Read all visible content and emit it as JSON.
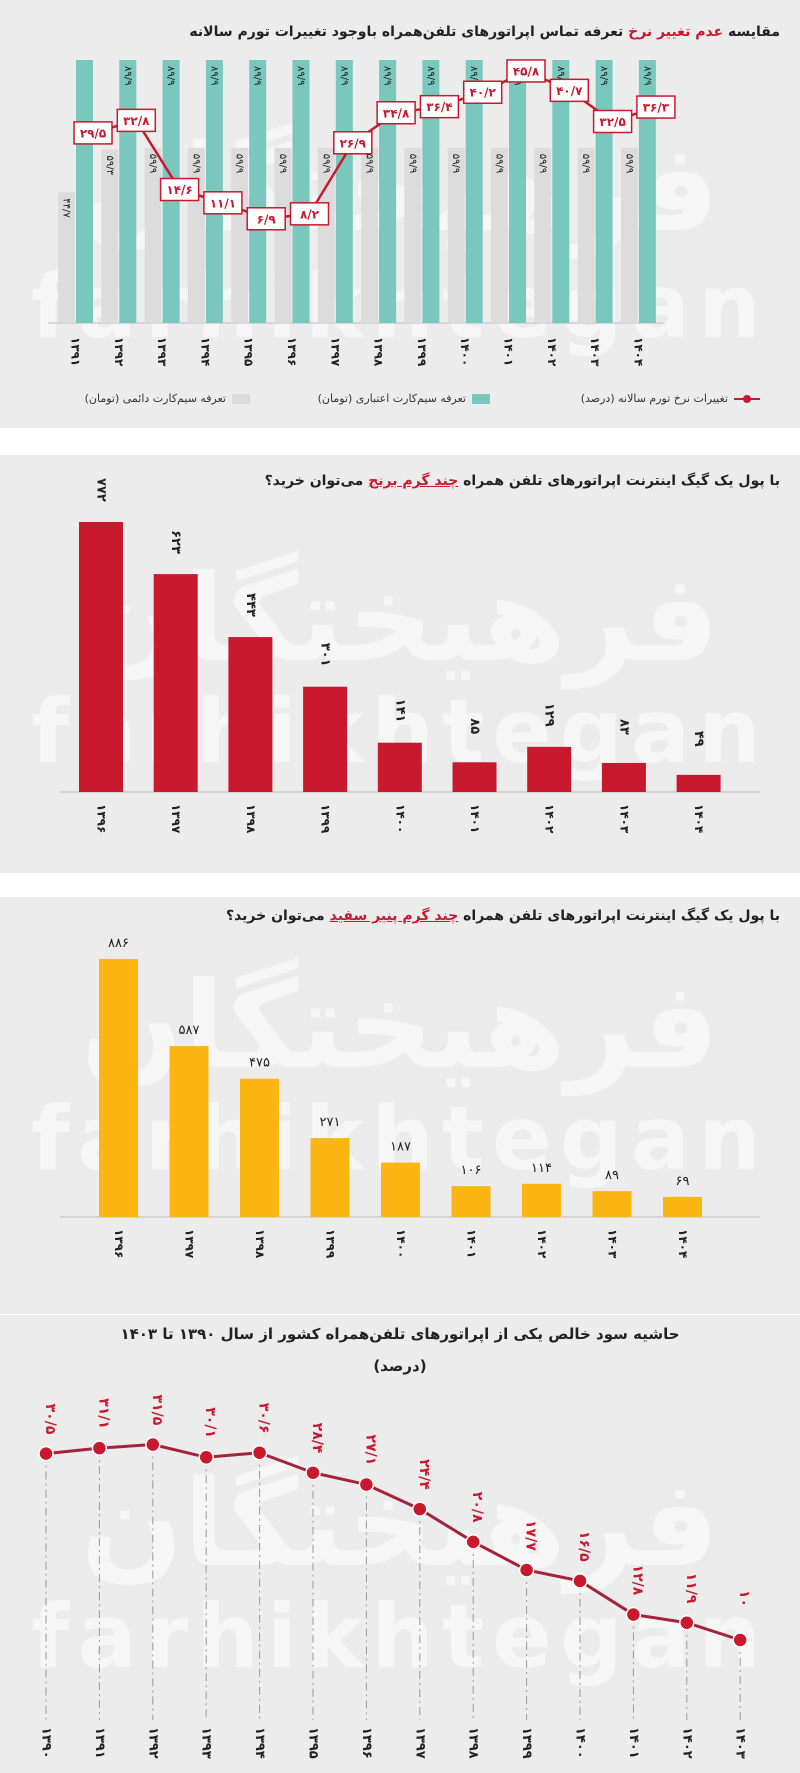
{
  "colors": {
    "red": "#c8192e",
    "teal": "#79c7bd",
    "gray": "#dcdcdc",
    "orange": "#fdb514",
    "line_dark": "#a3233a"
  },
  "watermark": {
    "fa": "فرهیختگان",
    "en": "farhikhtegan"
  },
  "panel1": {
    "title_before": "مقایسه",
    "title_highlight": "عدم تغییر نرخ",
    "title_after": "تعرفه تماس اپراتورهای تلفن‌همراه باوجود تغییرات تورم سالانه",
    "legend": {
      "permanent": "تعرفه سیم‌کارت دائمی (تومان)",
      "prepaid": "تعرفه سیم‌کارت اعتباری (تومان)",
      "inflation": "تغییرات نرخ تورم سالانه (درصد)"
    },
    "chart_data": {
      "type": "bar",
      "categories": [
        "۱۳۹۱",
        "۱۳۹۲",
        "۱۳۹۳",
        "۱۳۹۴",
        "۱۳۹۵",
        "۱۳۹۶",
        "۱۳۹۷",
        "۱۳۹۸",
        "۱۳۹۹",
        "۱۴۰۰",
        "۱۴۰۱",
        "۱۴۰۲",
        "۱۴۰۳",
        "۱۴۰۴"
      ],
      "series": [
        {
          "name": "تعرفه سیم‌کارت دائمی (تومان)",
          "values": [
            44.7,
            59.3,
            59.9,
            59.9,
            59.9,
            59.9,
            59.9,
            59.9,
            59.9,
            59.9,
            59.9,
            59.9,
            59.9,
            59.9
          ],
          "labels": [
            "۴۴/۷",
            "۵۹/۳",
            "۵۹/۹",
            "۵۹/۹",
            "۵۹/۹",
            "۵۹/۹",
            "۵۹/۹",
            "۵۹/۹",
            "۵۹/۹",
            "۵۹/۹",
            "۵۹/۹",
            "۵۹/۹",
            "۵۹/۹",
            "۵۹/۹"
          ]
        },
        {
          "name": "تعرفه سیم‌کارت اعتباری (تومان)",
          "values": [
            89.9,
            89.9,
            89.9,
            89.9,
            89.9,
            89.9,
            89.9,
            89.9,
            89.9,
            89.9,
            89.9,
            89.9,
            89.9,
            89.9
          ],
          "labels": [
            "",
            "۸۹/۹",
            "۸۹/۹",
            "۸۹/۹",
            "۸۹/۹",
            "۸۹/۹",
            "۸۹/۹",
            "۸۹/۹",
            "۸۹/۹",
            "۸۹/۹",
            "۸۹/۹",
            "۸۹/۹",
            "۸۹/۹",
            "۸۹/۹"
          ]
        },
        {
          "name": "تغییرات نرخ تورم سالانه (درصد)",
          "type": "line",
          "values": [
            29.5,
            32.8,
            14.6,
            11.1,
            6.9,
            8.2,
            26.9,
            34.8,
            36.4,
            40.2,
            45.8,
            40.7,
            32.5,
            36.3
          ],
          "labels": [
            "۲۹/۵",
            "۳۲/۸",
            "۱۴/۶",
            "۱۱/۱",
            "۶/۹",
            "۸/۲",
            "۲۶/۹",
            "۳۴/۸",
            "۳۶/۴",
            "۴۰/۲",
            "۴۵/۸",
            "۴۰/۷",
            "۳۲/۵",
            "۳۶/۳"
          ]
        }
      ]
    }
  },
  "panel2": {
    "title_before": "با پول یک گیگ اینترنت اپراتورهای تلفن همراه",
    "title_highlight": "چند گرم برنج",
    "title_after": "می‌توان خرید؟",
    "chart_data": {
      "type": "bar",
      "categories": [
        "۱۳۹۶",
        "۱۳۹۷",
        "۱۳۹۸",
        "۱۳۹۹",
        "۱۴۰۰",
        "۱۴۰۱",
        "۱۴۰۲",
        "۱۴۰۳",
        "۱۴۰۴"
      ],
      "values": [
        772,
        623,
        443,
        301,
        141,
        85,
        129,
        83,
        49
      ],
      "labels": [
        "۷۷۲",
        "۶۲۳",
        "۴۴۳",
        "۳۰۱",
        "۱۴۱",
        "۸۵",
        "۱۲۹",
        "۸۳",
        "۴۹"
      ]
    }
  },
  "panel3": {
    "title_before": "با پول یک گیگ اینترنت اپراتورهای تلفن همراه",
    "title_highlight": "چند گرم پنیر سفید",
    "title_after": "می‌توان خرید؟",
    "chart_data": {
      "type": "bar",
      "categories": [
        "۱۳۹۶",
        "۱۳۹۷",
        "۱۳۹۸",
        "۱۳۹۹",
        "۱۴۰۰",
        "۱۴۰۱",
        "۱۴۰۲",
        "۱۴۰۳",
        "۱۴۰۴"
      ],
      "values": [
        886,
        587,
        475,
        271,
        187,
        106,
        114,
        89,
        69
      ],
      "labels": [
        "۸۸۶",
        "۵۸۷",
        "۴۷۵",
        "۲۷۱",
        "۱۸۷",
        "۱۰۶",
        "۱۱۴",
        "۸۹",
        "۶۹"
      ]
    }
  },
  "panel4": {
    "title_line1": "حاشیه سود خالص یکی از اپراتورهای تلفن‌همراه کشور از سال ۱۳۹۰ تا ۱۴۰۳",
    "title_line2": "(درصد)",
    "chart_data": {
      "type": "line",
      "categories": [
        "۱۳۹۰",
        "۱۳۹۱",
        "۱۳۹۲",
        "۱۳۹۳",
        "۱۳۹۴",
        "۱۳۹۵",
        "۱۳۹۶",
        "۱۳۹۷",
        "۱۳۹۸",
        "۱۳۹۹",
        "۱۴۰۰",
        "۱۴۰۱",
        "۱۴۰۲",
        "۱۴۰۳"
      ],
      "values": [
        30.5,
        31.1,
        31.5,
        30.1,
        30.6,
        28.4,
        27.1,
        24.4,
        20.8,
        17.7,
        16.5,
        12.8,
        11.9,
        10
      ],
      "labels": [
        "۳۰/۵",
        "۳۱/۱",
        "۳۱/۵",
        "۳۰/۱",
        "۳۰/۶",
        "۲۸/۴",
        "۲۷/۱",
        "۲۴/۴",
        "۲۰/۸",
        "۱۷/۷",
        "۱۶/۵",
        "۱۲/۸",
        "۱۱/۹",
        "۱۰"
      ]
    }
  }
}
